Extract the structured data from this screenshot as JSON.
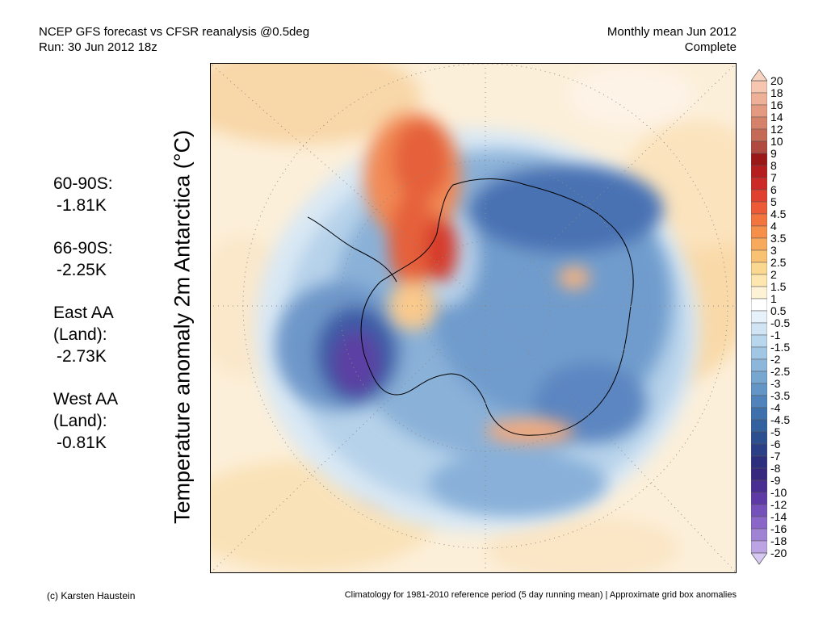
{
  "header": {
    "title_line1": "NCEP GFS forecast vs CFSR reanalysis @0.5deg",
    "title_line2": "Run: 30 Jun 2012 18z",
    "period_line1": "Monthly mean Jun 2012",
    "period_line2": "Complete"
  },
  "stats": [
    {
      "label": "60-90S:",
      "value": "-1.81K"
    },
    {
      "label": "66-90S:",
      "value": "-2.25K"
    },
    {
      "label": "East AA\n(Land):",
      "value": "-2.73K"
    },
    {
      "label": "West AA\n(Land):",
      "value": "-0.81K"
    }
  ],
  "vertical_title": "Temperature anomaly 2m Antarctica (°C)",
  "colorbar": {
    "labels": [
      "20",
      "18",
      "16",
      "14",
      "12",
      "10",
      "9",
      "8",
      "7",
      "6",
      "5",
      "4.5",
      "4",
      "3.5",
      "3",
      "2.5",
      "2",
      "1.5",
      "1",
      "0.5",
      "-0.5",
      "-1",
      "-1.5",
      "-2",
      "-2.5",
      "-3",
      "-3.5",
      "-4",
      "-4.5",
      "-5",
      "-6",
      "-7",
      "-8",
      "-9",
      "-10",
      "-12",
      "-14",
      "-16",
      "-18",
      "-20"
    ],
    "colors": [
      "#f6c6b0",
      "#eeb096",
      "#e49a80",
      "#d6816a",
      "#c56a56",
      "#b04a40",
      "#9a1818",
      "#b41e1e",
      "#cc2a26",
      "#e0402e",
      "#ec5a36",
      "#f2753e",
      "#f58f4a",
      "#f7a95c",
      "#f9c272",
      "#fbd890",
      "#fde6b0",
      "#fdf1d6",
      "#ffffff",
      "#e6f1fa",
      "#d0e4f3",
      "#b8d6ec",
      "#a2c7e4",
      "#8cb7db",
      "#77a7d1",
      "#6395c6",
      "#5083bb",
      "#3f70ae",
      "#33609f",
      "#2b4f8f",
      "#2a3f86",
      "#2c2f7e",
      "#36287e",
      "#4a2f92",
      "#5e3aa6",
      "#7450ba",
      "#8a66c8",
      "#a183d6",
      "#bca4e4"
    ],
    "top_arrow_color": "#f8d3c0",
    "bottom_arrow_color": "#d6c8f2"
  },
  "footer": {
    "credit": "(c) Karsten Haustein",
    "note": "Climatology for 1981-2010 reference period (5 day running mean) | Approximate grid box anomalies"
  }
}
